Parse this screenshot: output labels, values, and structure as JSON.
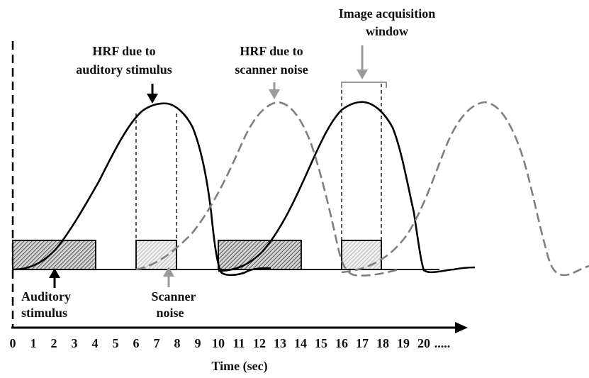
{
  "labels": {
    "hrf_auditory_line1": "HRF due to",
    "hrf_auditory_line2": "auditory stimulus",
    "hrf_noise_line1": "HRF due to",
    "hrf_noise_line2": "scanner noise",
    "acq_line1": "Image acquisition",
    "acq_line2": "window",
    "aud_line1": "Auditory",
    "aud_line2": "stimulus",
    "scan_line1": "Scanner",
    "scan_line2": "noise"
  },
  "axis": {
    "label": "Time (sec)",
    "ticks": [
      "0",
      "1",
      "2",
      "3",
      "4",
      "5",
      "6",
      "7",
      "8",
      "9",
      "10",
      "11",
      "12",
      "13",
      "14",
      "15",
      "16",
      "17",
      "18",
      "19",
      "20"
    ],
    "ellipsis": "....."
  },
  "colors": {
    "solid_curve": "#000000",
    "dashed_curve": "#7f7f7f",
    "auditory_arrow": "#000000",
    "noise_arrow": "#9a9a9a"
  }
}
